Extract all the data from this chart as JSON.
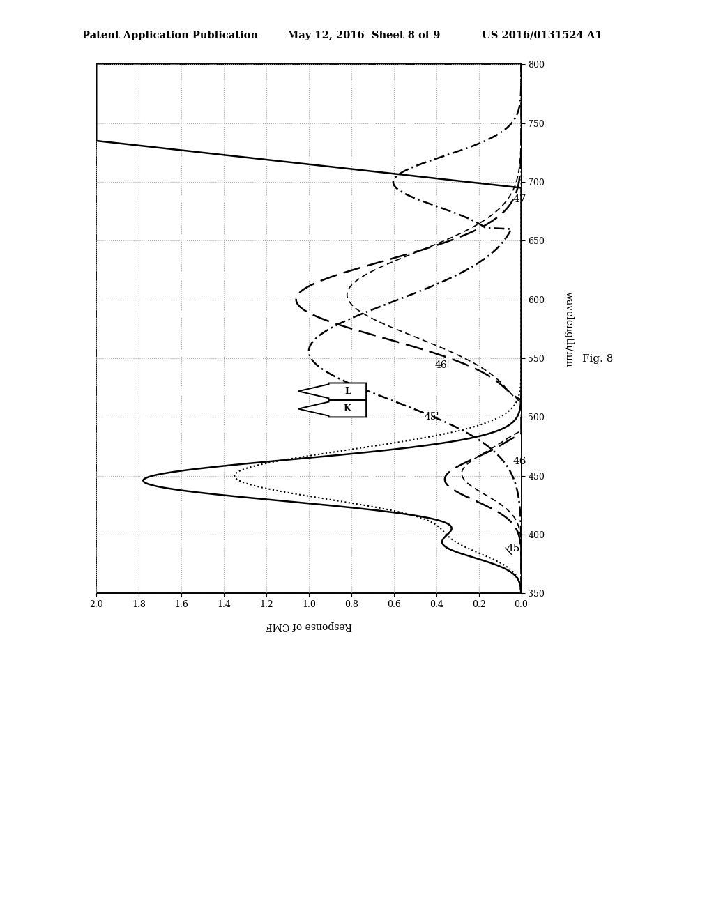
{
  "patent_line1": "Patent Application Publication",
  "patent_line2": "May 12, 2016  Sheet 8 of 9",
  "patent_line3": "US 2016/0131524 A1",
  "fig_label": "Fig. 8",
  "xlabel_bottom": "Response of CMF",
  "ylabel_right": "wavelength/nm",
  "resp_min": 0.0,
  "resp_max": 2.0,
  "wl_min": 350,
  "wl_max": 800,
  "resp_ticks": [
    0.0,
    0.2,
    0.4,
    0.6,
    0.8,
    1.0,
    1.2,
    1.4,
    1.6,
    1.8,
    2.0
  ],
  "wl_ticks": [
    350,
    400,
    450,
    500,
    550,
    600,
    650,
    700,
    750,
    800
  ],
  "bg_color": "#ffffff",
  "grid_color": "#aaaaaa",
  "line_color": "#000000"
}
